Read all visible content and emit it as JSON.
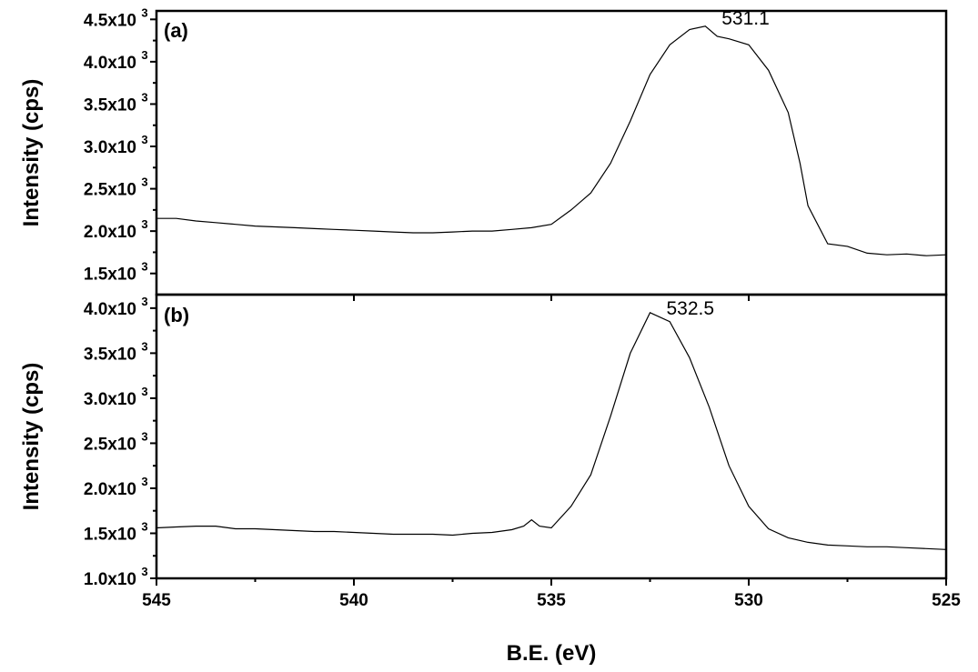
{
  "chart_data": {
    "type": "line",
    "xlabel": "B.E. (eV)",
    "xlim": [
      545,
      525
    ],
    "x_reversed": true,
    "x_ticks": [
      545,
      540,
      535,
      530,
      525
    ],
    "panels": [
      {
        "panel_label": "(a)",
        "ylabel": "Intensity (cps)",
        "ylim": [
          1250,
          4600
        ],
        "y_ticks": [
          {
            "value": 1500,
            "label": "1.5x10",
            "exp": "3"
          },
          {
            "value": 2000,
            "label": "2.0x10",
            "exp": "3"
          },
          {
            "value": 2500,
            "label": "2.5x10",
            "exp": "3"
          },
          {
            "value": 3000,
            "label": "3.0x10",
            "exp": "3"
          },
          {
            "value": 3500,
            "label": "3.5x10",
            "exp": "3"
          },
          {
            "value": 4000,
            "label": "4.0x10",
            "exp": "3"
          },
          {
            "value": 4500,
            "label": "4.5x10",
            "exp": "3"
          }
        ],
        "annotation": {
          "text": "531.1",
          "x": 531.1,
          "y": 4460
        },
        "series": [
          {
            "x": [
              545,
              544.5,
              544,
              543.5,
              543,
              542.5,
              542,
              541.5,
              541,
              540.5,
              540,
              539.5,
              539,
              538.5,
              538,
              537.5,
              537,
              536.5,
              536,
              535.5,
              535,
              534.5,
              534,
              533.5,
              533,
              532.5,
              532,
              531.5,
              531.1,
              530.8,
              530.5,
              530,
              529.5,
              529,
              528.7,
              528.5,
              528,
              527.5,
              527,
              526.5,
              526,
              525.5,
              525
            ],
            "y": [
              2150,
              2150,
              2120,
              2100,
              2080,
              2060,
              2050,
              2040,
              2030,
              2020,
              2010,
              2000,
              1990,
              1980,
              1980,
              1990,
              2000,
              2000,
              2020,
              2040,
              2080,
              2250,
              2450,
              2800,
              3300,
              3850,
              4200,
              4380,
              4420,
              4300,
              4270,
              4200,
              3900,
              3400,
              2800,
              2300,
              1850,
              1820,
              1740,
              1720,
              1730,
              1710,
              1720
            ]
          }
        ]
      },
      {
        "panel_label": "(b)",
        "ylabel": "Intensity (cps)",
        "ylim": [
          1000,
          4150
        ],
        "y_ticks": [
          {
            "value": 1000,
            "label": "1.0x10",
            "exp": "3"
          },
          {
            "value": 1500,
            "label": "1.5x10",
            "exp": "3"
          },
          {
            "value": 2000,
            "label": "2.0x10",
            "exp": "3"
          },
          {
            "value": 2500,
            "label": "2.5x10",
            "exp": "3"
          },
          {
            "value": 3000,
            "label": "3.0x10",
            "exp": "3"
          },
          {
            "value": 3500,
            "label": "3.5x10",
            "exp": "3"
          },
          {
            "value": 4000,
            "label": "4.0x10",
            "exp": "3"
          }
        ],
        "annotation": {
          "text": "532.5",
          "x": 532.5,
          "y": 3950
        },
        "series": [
          {
            "x": [
              545,
              544.5,
              544,
              543.5,
              543,
              542.5,
              542,
              541.5,
              541,
              540.5,
              540,
              539.5,
              539,
              538.5,
              538,
              537.5,
              537,
              536.5,
              536,
              535.7,
              535.5,
              535.3,
              535,
              534.5,
              534,
              533.5,
              533,
              532.5,
              532,
              531.5,
              531,
              530.5,
              530,
              529.5,
              529,
              528.5,
              528,
              527.5,
              527,
              526.5,
              526,
              525.5,
              525
            ],
            "y": [
              1560,
              1570,
              1580,
              1580,
              1550,
              1550,
              1540,
              1530,
              1520,
              1520,
              1510,
              1500,
              1490,
              1490,
              1490,
              1480,
              1500,
              1510,
              1540,
              1580,
              1650,
              1580,
              1560,
              1800,
              2150,
              2800,
              3500,
              3950,
              3850,
              3450,
              2900,
              2250,
              1800,
              1550,
              1450,
              1400,
              1370,
              1360,
              1350,
              1350,
              1340,
              1330,
              1320
            ]
          }
        ]
      }
    ]
  }
}
